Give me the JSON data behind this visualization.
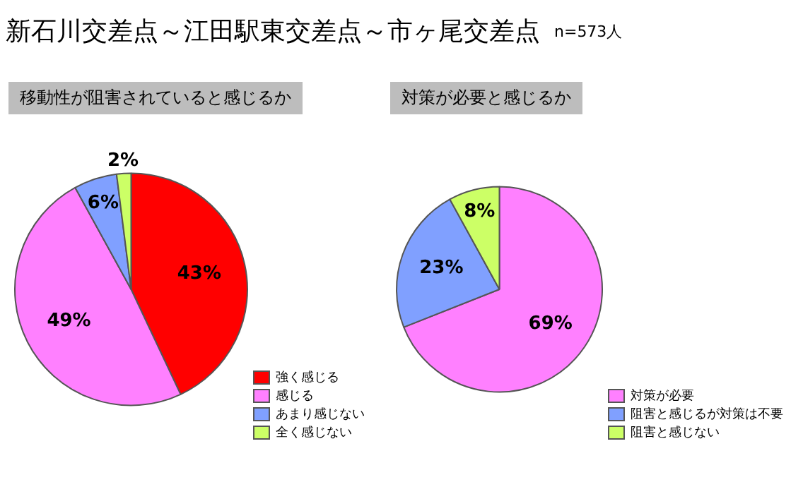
{
  "chart_data": [
    {
      "type": "pie",
      "title": "移動性が阻害されていると感じるか",
      "annotations": [
        "新石川交差点～江田駅東交差点～市ヶ尾交差点",
        "n=573人"
      ],
      "categories": [
        "強く感じる",
        "感じる",
        "あまり感じない",
        "全く感じない"
      ],
      "values": [
        43,
        49,
        6,
        2
      ],
      "value_labels": [
        "43%",
        "49%",
        "6%",
        "2%"
      ],
      "colors": [
        "#ff0000",
        "#ff80ff",
        "#80a0ff",
        "#ccff66"
      ],
      "legend": "bottom right"
    },
    {
      "type": "pie",
      "title": "対策が必要と感じるか",
      "categories": [
        "対策が必要",
        "阻害と感じるが対策は不要",
        "阻害と感じない"
      ],
      "values": [
        69,
        23,
        8
      ],
      "value_labels": [
        "69%",
        "23%",
        "8%"
      ],
      "colors": [
        "#ff80ff",
        "#80a0ff",
        "#ccff66"
      ],
      "legend": "bottom right"
    }
  ]
}
